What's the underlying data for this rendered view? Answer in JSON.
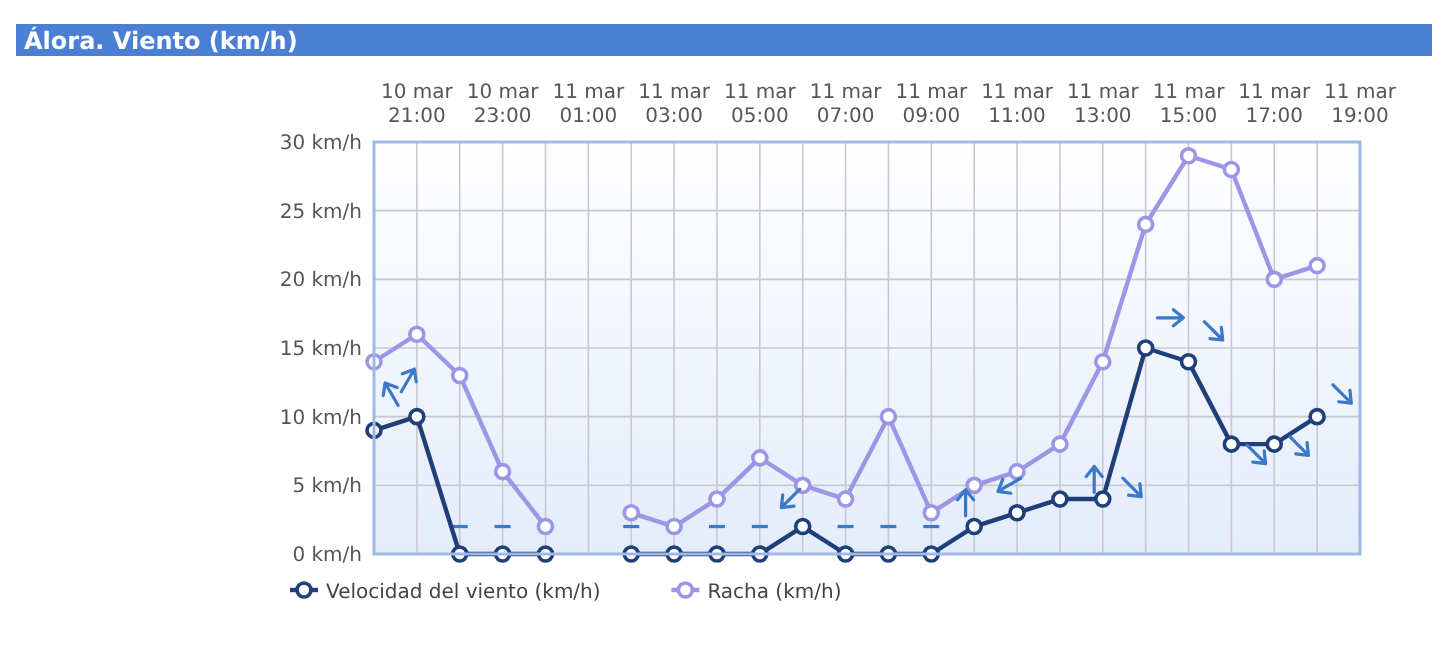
{
  "chart_data": {
    "type": "line",
    "title": "Álora. Viento (km/h)",
    "categories": [
      null,
      "10 mar 21:00",
      null,
      "10 mar 23:00",
      null,
      "11 mar 01:00",
      null,
      "11 mar 03:00",
      null,
      "11 mar 05:00",
      null,
      "11 mar 07:00",
      null,
      "11 mar 09:00",
      null,
      "11 mar 11:00",
      null,
      "11 mar 13:00",
      null,
      "11 mar 15:00",
      null,
      "11 mar 17:00",
      null,
      "11 mar 19:00"
    ],
    "series": [
      {
        "name": "Velocidad del viento (km/h)",
        "color": "#1f3f7a",
        "values": [
          9,
          10,
          0,
          0,
          0,
          null,
          0,
          0,
          0,
          0,
          2,
          0,
          0,
          0,
          2,
          3,
          4,
          4,
          15,
          14,
          8,
          8,
          10,
          null
        ]
      },
      {
        "name": "Racha (km/h)",
        "color": "#9b96e6",
        "values": [
          14,
          16,
          13,
          6,
          2,
          null,
          3,
          2,
          4,
          7,
          5,
          4,
          10,
          3,
          5,
          6,
          8,
          14,
          24,
          29,
          28,
          20,
          21,
          null
        ]
      }
    ],
    "ylim": [
      0,
      30
    ],
    "yticks": [
      {
        "value": 0,
        "label": "0 km/h"
      },
      {
        "value": 5,
        "label": "5 km/h"
      },
      {
        "value": 10,
        "label": "10 km/h"
      },
      {
        "value": 15,
        "label": "15 km/h"
      },
      {
        "value": 20,
        "label": "20 km/h"
      },
      {
        "value": 25,
        "label": "25 km/h"
      },
      {
        "value": 30,
        "label": "30 km/h"
      }
    ],
    "grid": true,
    "legend": "bottom left",
    "marker": "circle",
    "line_style": "solid"
  }
}
